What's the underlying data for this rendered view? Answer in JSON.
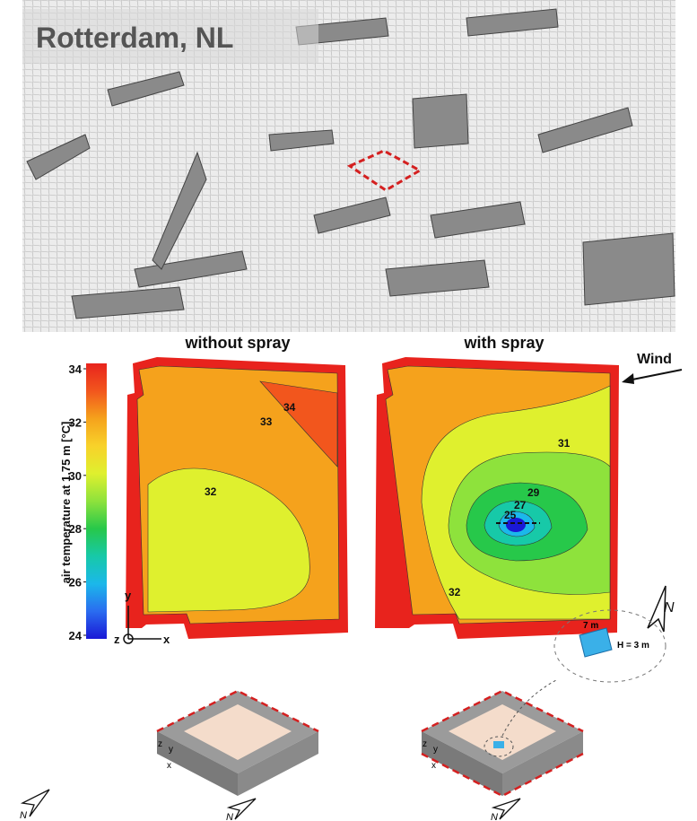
{
  "figure": {
    "location": "Rotterdam, NL",
    "panels": [
      {
        "title": "without spray",
        "contour_labels": [
          "34",
          "33",
          "32"
        ]
      },
      {
        "title": "with spray",
        "contour_labels": [
          "31",
          "29",
          "27",
          "25",
          "32"
        ]
      }
    ],
    "wind": "Wind",
    "colorbar": {
      "label": "air temperature at 1.75 m [°C]",
      "ticks": [
        34,
        32,
        30,
        28,
        26,
        24
      ]
    },
    "axes": {
      "x": "x",
      "y": "y",
      "z": "z"
    },
    "north": "N",
    "spray": {
      "width": "7 m",
      "height": "H = 3 m"
    }
  }
}
